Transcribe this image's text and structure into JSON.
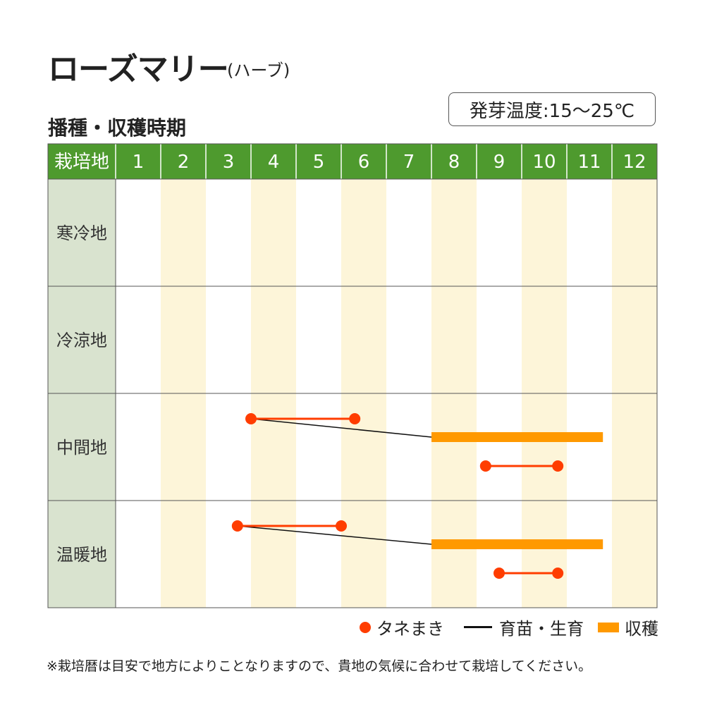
{
  "title": "ローズマリー",
  "subtitle": "(ハーブ)",
  "section_title": "播種・収穫時期",
  "germination_temp": "発芽温度:15～25℃",
  "note": "※栽培暦は目安で地方によりことなりますので、貴地の気候に合わせて栽培してください。",
  "colors": {
    "header_bg": "#4e9a2e",
    "region_bg": "#d9e3cf",
    "stripe": "#fdf5d9",
    "sowing": "#ff3d00",
    "growing": "#111111",
    "harvest": "#ff9900",
    "grid": "#555555"
  },
  "legend": {
    "sowing": "タネまき",
    "growing": "育苗・生育",
    "harvest": "収穫"
  },
  "chart_data": {
    "type": "table",
    "corner_label": "栽培地",
    "months": [
      "1",
      "2",
      "3",
      "4",
      "5",
      "6",
      "7",
      "8",
      "9",
      "10",
      "11",
      "12"
    ],
    "regions": [
      {
        "name": "寒冷地",
        "sowing": [],
        "growing": [],
        "harvest": []
      },
      {
        "name": "冷涼地",
        "sowing": [],
        "growing": [],
        "harvest": []
      },
      {
        "name": "中間地",
        "sowing": [
          {
            "start": 4.0,
            "end": 6.3
          },
          {
            "start": 9.2,
            "end": 10.8
          }
        ],
        "growing": [
          {
            "from": 4.0,
            "to": 8.0
          }
        ],
        "harvest": [
          {
            "start": 8.0,
            "end": 11.8
          }
        ]
      },
      {
        "name": "温暖地",
        "sowing": [
          {
            "start": 3.7,
            "end": 6.0
          },
          {
            "start": 9.5,
            "end": 10.8
          }
        ],
        "growing": [
          {
            "from": 3.7,
            "to": 8.0
          }
        ],
        "harvest": [
          {
            "start": 8.0,
            "end": 11.8
          }
        ]
      }
    ]
  }
}
